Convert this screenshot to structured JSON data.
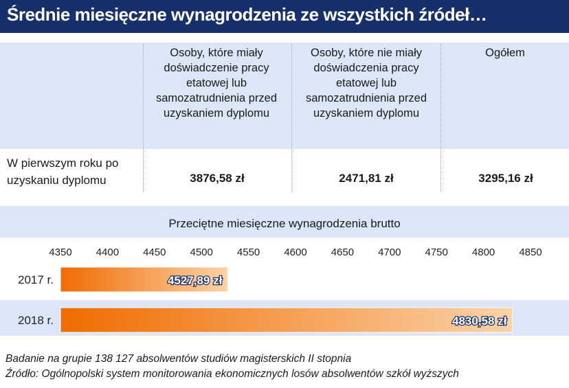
{
  "title": "Średnie miesięczne wynagrodzenia ze wszystkich źródeł…",
  "table": {
    "columns": [
      "Osoby, które miały doświadczenie pracy etatowej lub samozatrudnienia przed uzyskaniem dyplomu",
      "Osoby, które nie miały doświadczenia pracy etatowej lub samozatrudnienia przed uzyskaniem dyplomu",
      "Ogółem"
    ],
    "row_label": "W pierwszym roku po uzyskaniu dyplomu",
    "values": [
      "3876,58 zł",
      "2471,81 zł",
      "3295,16 zł"
    ]
  },
  "colors": {
    "title_bg": "#16306b",
    "band": "#dbe6f6",
    "bar_start": "#ef6c00",
    "bar_end": "#fbd2a8",
    "value_label": "#ffffff"
  },
  "chart_data": {
    "type": "bar",
    "orientation": "horizontal",
    "title": "Przeciętne miesięczne wynagrodzenia brutto",
    "categories": [
      "2017 r.",
      "2018 r."
    ],
    "values": [
      4527.89,
      4830.58
    ],
    "value_labels": [
      "4527,89 zł",
      "4830,58 zł"
    ],
    "xlim": [
      4350,
      4850
    ],
    "xticks": [
      4350,
      4400,
      4450,
      4500,
      4550,
      4600,
      4650,
      4700,
      4750,
      4800,
      4850
    ],
    "xaxis_position": "top",
    "grid": false
  },
  "notes": [
    "Badanie na grupie 138 127 absolwentów studiów magisterskich II stopnia",
    "Źródło: Ogólnopolski system monitorowania ekonomicznych losów absolwentów szkół wyższych"
  ]
}
